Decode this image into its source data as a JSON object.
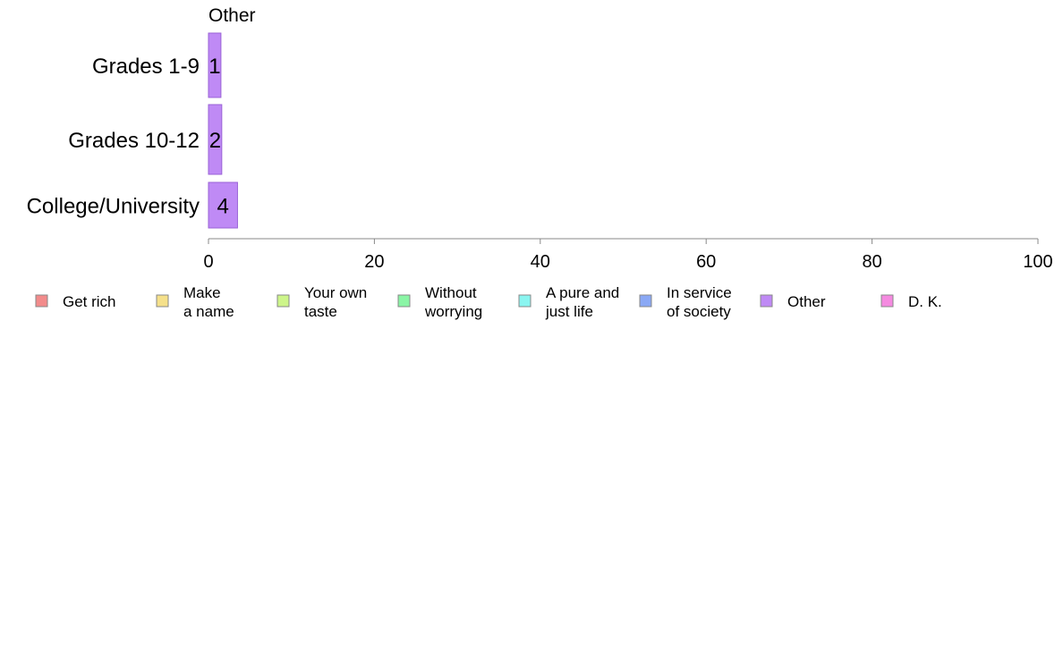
{
  "chart_data": {
    "type": "bar",
    "orientation": "horizontal",
    "panel_title": "Other",
    "categories": [
      "Grades 1-9",
      "Grades 10-12",
      "College/University"
    ],
    "series": [
      {
        "name": "Other",
        "values": [
          1.5,
          1.6,
          3.5
        ],
        "labels": [
          "1",
          "2",
          "4"
        ]
      }
    ],
    "xlim": [
      0,
      100
    ],
    "x_ticks": [
      0,
      20,
      40,
      60,
      80,
      100
    ],
    "grid": false,
    "legend_position": "bottom",
    "legend": [
      {
        "label": "Get rich",
        "color": "#f28b8b"
      },
      {
        "label": "Make\na name",
        "color": "#f5e08a"
      },
      {
        "label": "Your own\ntaste",
        "color": "#cdf58a"
      },
      {
        "label": "Without\nworrying",
        "color": "#8af5a5"
      },
      {
        "label": "A pure and\njust life",
        "color": "#8af5f0"
      },
      {
        "label": "In service\nof society",
        "color": "#8aa8f5"
      },
      {
        "label": "Other",
        "color": "#bf8af5"
      },
      {
        "label": "D. K.",
        "color": "#f58ae0"
      }
    ],
    "bar_color": "#bf8af5",
    "bar_stroke": "#9a63d6",
    "axis_color": "#888888"
  }
}
